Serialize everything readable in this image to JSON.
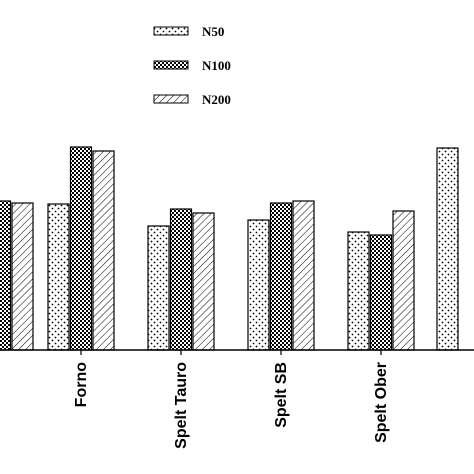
{
  "chart_data": {
    "type": "bar",
    "categories": [
      "",
      "Forno",
      "Spelt Tauro",
      "Spelt SB",
      "Spelt Ober",
      ""
    ],
    "series": [
      {
        "name": "N50",
        "pattern": "dots",
        "values": [
          null,
          146,
          124,
          130,
          118,
          202
        ]
      },
      {
        "name": "N100",
        "pattern": "checks",
        "values": [
          149,
          203,
          141,
          147,
          115,
          null
        ]
      },
      {
        "name": "N200",
        "pattern": "hatch",
        "values": [
          147,
          199,
          137,
          149,
          139,
          null
        ]
      }
    ],
    "ylim": [
      0,
      220
    ],
    "legend_position": "top-center",
    "grid": false,
    "colors": {
      "bar_stroke": "#000000",
      "pattern_ink": "#000000",
      "background": "#ffffff"
    }
  }
}
